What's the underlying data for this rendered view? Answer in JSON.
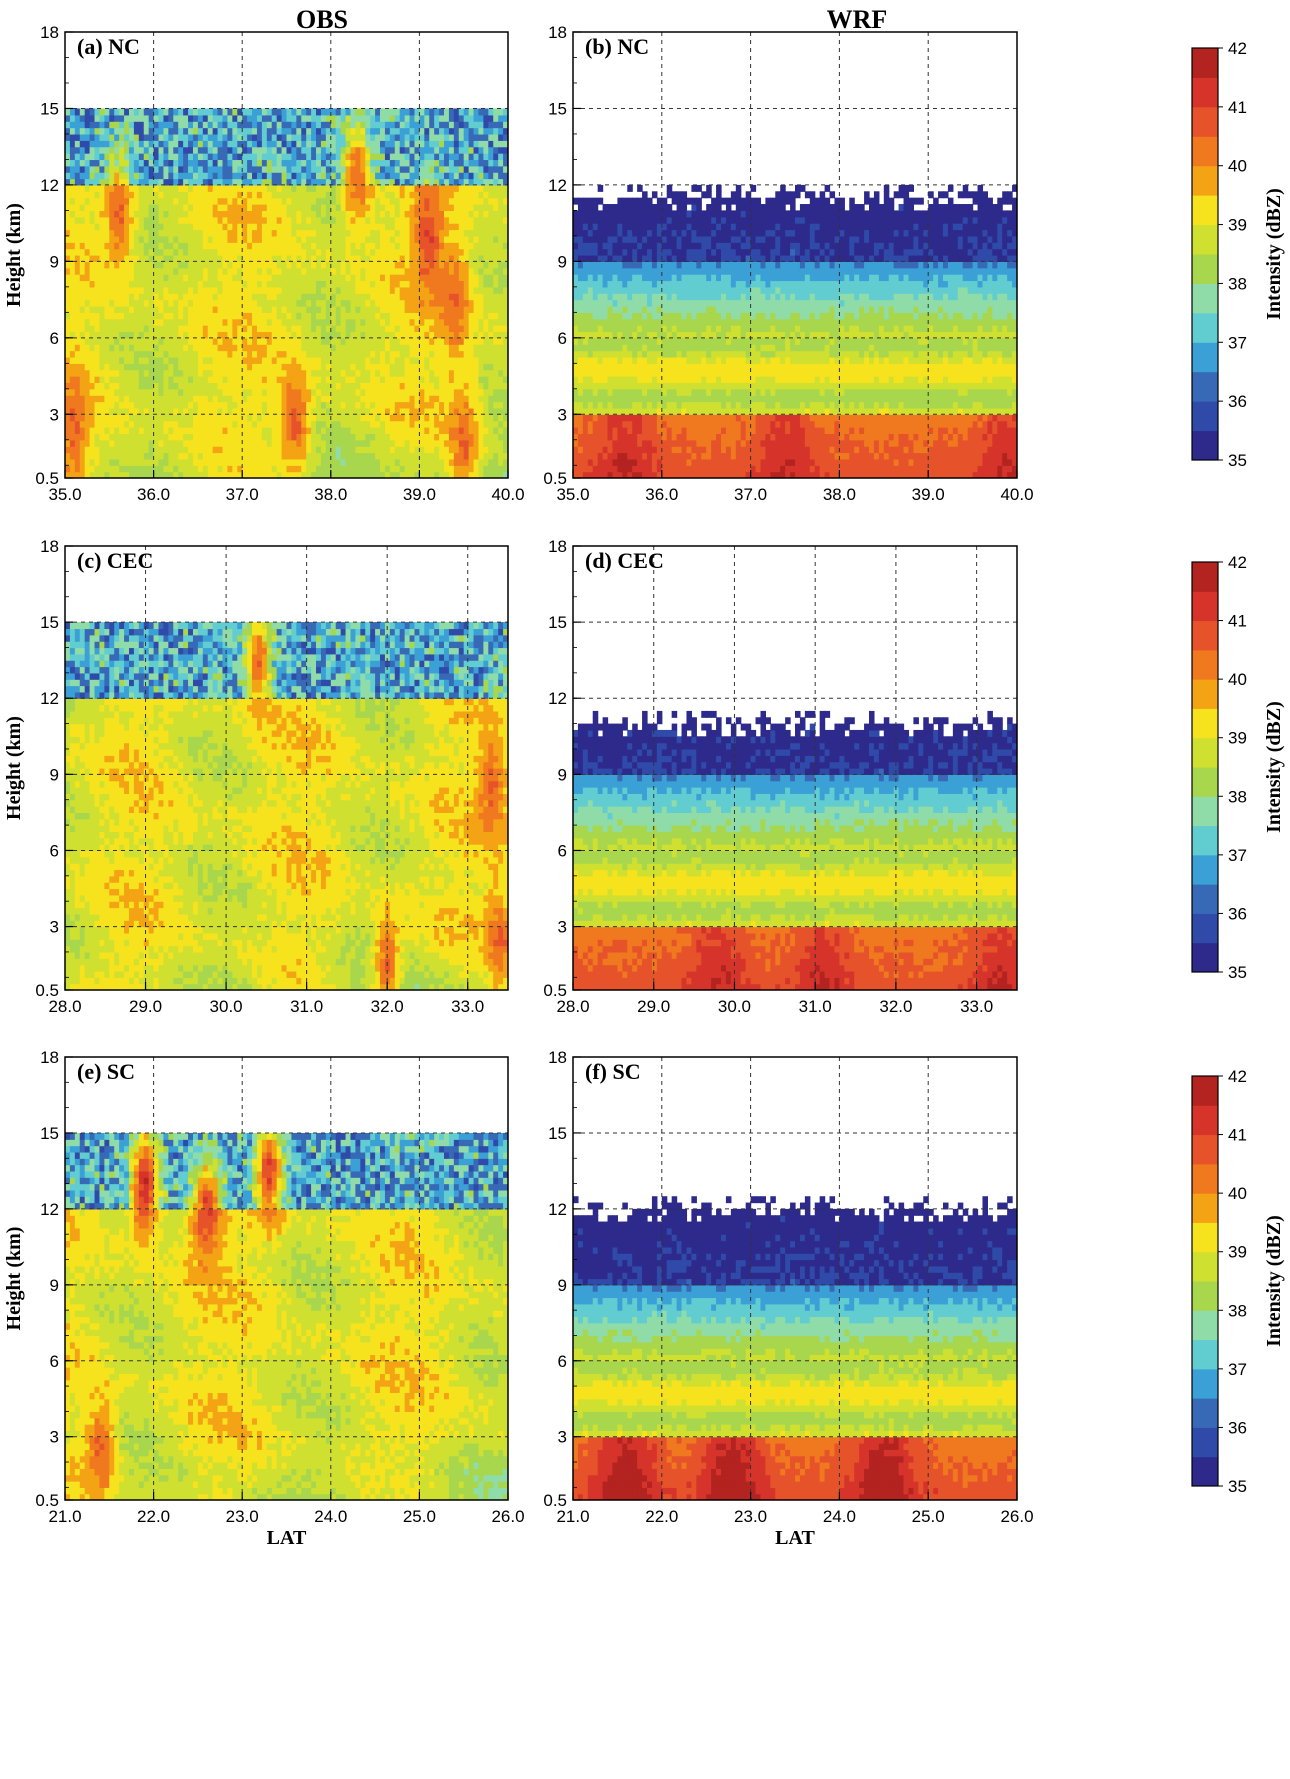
{
  "columns": [
    "OBS",
    "WRF"
  ],
  "colorbar": {
    "label": "Intensity (dBZ)",
    "range": [
      35,
      42
    ],
    "ticks": [
      "35",
      "36",
      "37",
      "38",
      "39",
      "40",
      "41",
      "42"
    ],
    "colors": [
      "#2d2a8c",
      "#2f4aa8",
      "#3769b6",
      "#3aa0d6",
      "#62cdd0",
      "#8fdca9",
      "#a8d64d",
      "#cfe030",
      "#f6e31d",
      "#f3a314",
      "#f0781e",
      "#e6532a",
      "#d6342a",
      "#b32320"
    ]
  },
  "shared": {
    "ylabel": "Height (km)",
    "yticks": [
      "0.5",
      "3",
      "6",
      "9",
      "12",
      "15",
      "18"
    ],
    "xlabel": "LAT"
  },
  "chart_data": [
    {
      "type": "heatmap",
      "title": "(a) NC",
      "xlim": [
        35.0,
        40.0
      ],
      "xticks": [
        "35.0",
        "36.0",
        "37.0",
        "38.0",
        "39.0",
        "40.0"
      ],
      "ylim": [
        0.5,
        18
      ],
      "ylabel": "Height (km)",
      "xlabel": "",
      "grid": true,
      "cloud_top_km": 15,
      "high_band_km": [
        12,
        15
      ],
      "hotspots": [
        [
          39.1,
          10.0,
          41
        ],
        [
          39.4,
          7.5,
          40.5
        ],
        [
          38.3,
          12.5,
          40.5
        ],
        [
          37.6,
          2.8,
          40.5
        ],
        [
          35.1,
          2.5,
          40.5
        ],
        [
          39.5,
          2.0,
          40.5
        ],
        [
          35.6,
          11.0,
          40.5
        ]
      ]
    },
    {
      "type": "heatmap",
      "title": "(b) NC",
      "xlim": [
        35.0,
        40.0
      ],
      "xticks": [
        "35.0",
        "36.0",
        "37.0",
        "38.0",
        "39.0",
        "40.0"
      ],
      "ylim": [
        0.5,
        18
      ],
      "ylabel": "",
      "xlabel": "",
      "grid": true,
      "cloud_top_km": 11.5,
      "low_maximum_dBZ": 41,
      "low_cores_lat": [
        35.6,
        37.4,
        39.9
      ]
    },
    {
      "type": "heatmap",
      "title": "(c) CEC",
      "xlim": [
        28.0,
        33.5
      ],
      "xticks": [
        "28.0",
        "29.0",
        "30.0",
        "31.0",
        "32.0",
        "33.0"
      ],
      "ylim": [
        0.5,
        18
      ],
      "ylabel": "Height (km)",
      "xlabel": "",
      "grid": true,
      "cloud_top_km": 15,
      "high_band_km": [
        12,
        15
      ],
      "hotspots": [
        [
          33.3,
          8.5,
          40.5
        ],
        [
          33.4,
          2.5,
          40.5
        ],
        [
          32.0,
          1.5,
          40.5
        ],
        [
          30.4,
          13.5,
          40.5
        ]
      ]
    },
    {
      "type": "heatmap",
      "title": "(d) CEC",
      "xlim": [
        28.0,
        33.5
      ],
      "xticks": [
        "28.0",
        "29.0",
        "30.0",
        "31.0",
        "32.0",
        "33.0"
      ],
      "ylim": [
        0.5,
        18
      ],
      "ylabel": "",
      "xlabel": "",
      "grid": true,
      "cloud_top_km": 11,
      "low_maximum_dBZ": 41,
      "low_cores_lat": [
        29.8,
        31.1,
        33.3
      ]
    },
    {
      "type": "heatmap",
      "title": "(e) SC",
      "xlim": [
        21.0,
        26.0
      ],
      "xticks": [
        "21.0",
        "22.0",
        "23.0",
        "24.0",
        "25.0",
        "26.0"
      ],
      "ylim": [
        0.5,
        18
      ],
      "ylabel": "Height (km)",
      "xlabel": "LAT",
      "grid": true,
      "cloud_top_km": 15,
      "high_band_km": [
        12,
        15
      ],
      "hotspots": [
        [
          21.9,
          13.0,
          41.5
        ],
        [
          22.6,
          12.0,
          41
        ],
        [
          23.3,
          13.5,
          41
        ],
        [
          21.4,
          2.5,
          40.5
        ]
      ]
    },
    {
      "type": "heatmap",
      "title": "(f) SC",
      "xlim": [
        21.0,
        26.0
      ],
      "xticks": [
        "21.0",
        "22.0",
        "23.0",
        "24.0",
        "25.0",
        "26.0"
      ],
      "ylim": [
        0.5,
        18
      ],
      "ylabel": "",
      "xlabel": "LAT",
      "grid": true,
      "cloud_top_km": 12,
      "low_maximum_dBZ": 41.5,
      "low_cores_lat": [
        21.6,
        22.8,
        24.5
      ]
    }
  ]
}
